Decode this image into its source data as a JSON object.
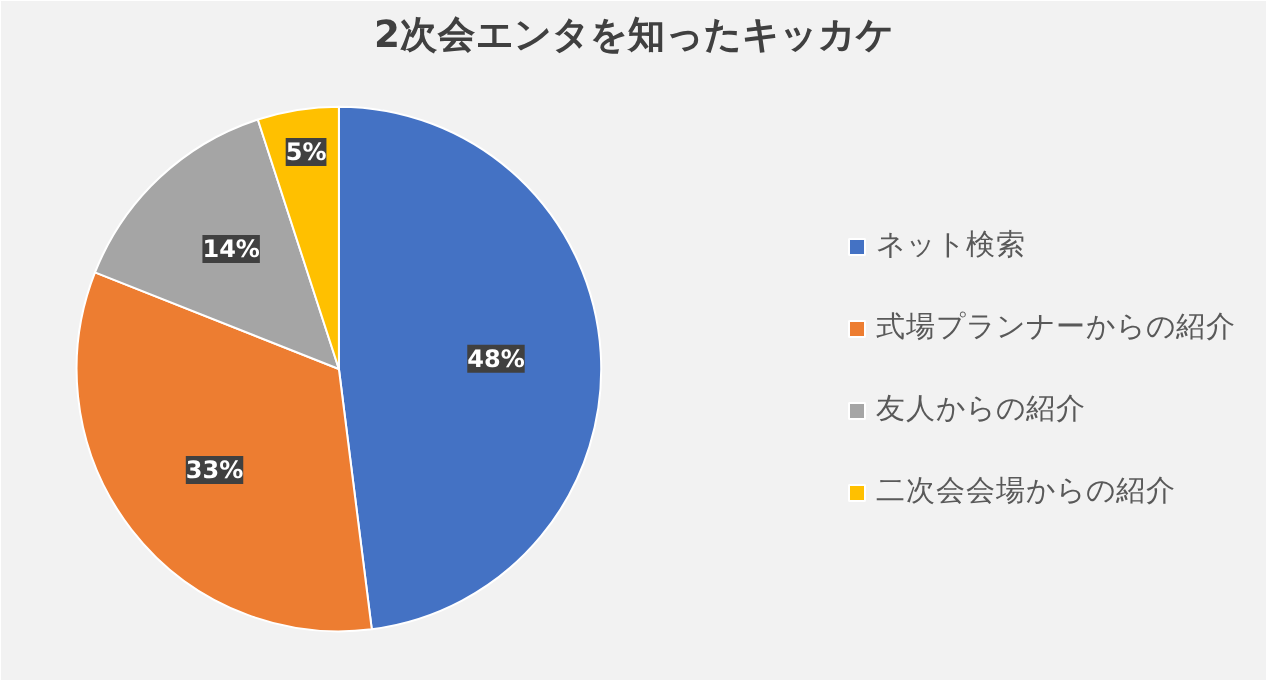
{
  "chart_data": {
    "type": "pie",
    "title": "2次会エンタを知ったキッカケ",
    "categories": [
      "ネット検索",
      "式場プランナーからの紹介",
      "友人からの紹介",
      "二次会会場からの紹介"
    ],
    "values": [
      48,
      33,
      14,
      5
    ],
    "colors": [
      "#4472c4",
      "#ed7d31",
      "#a5a5a5",
      "#ffc000"
    ],
    "value_labels": [
      "48%",
      "33%",
      "14%",
      "5%"
    ],
    "legend": "right"
  }
}
